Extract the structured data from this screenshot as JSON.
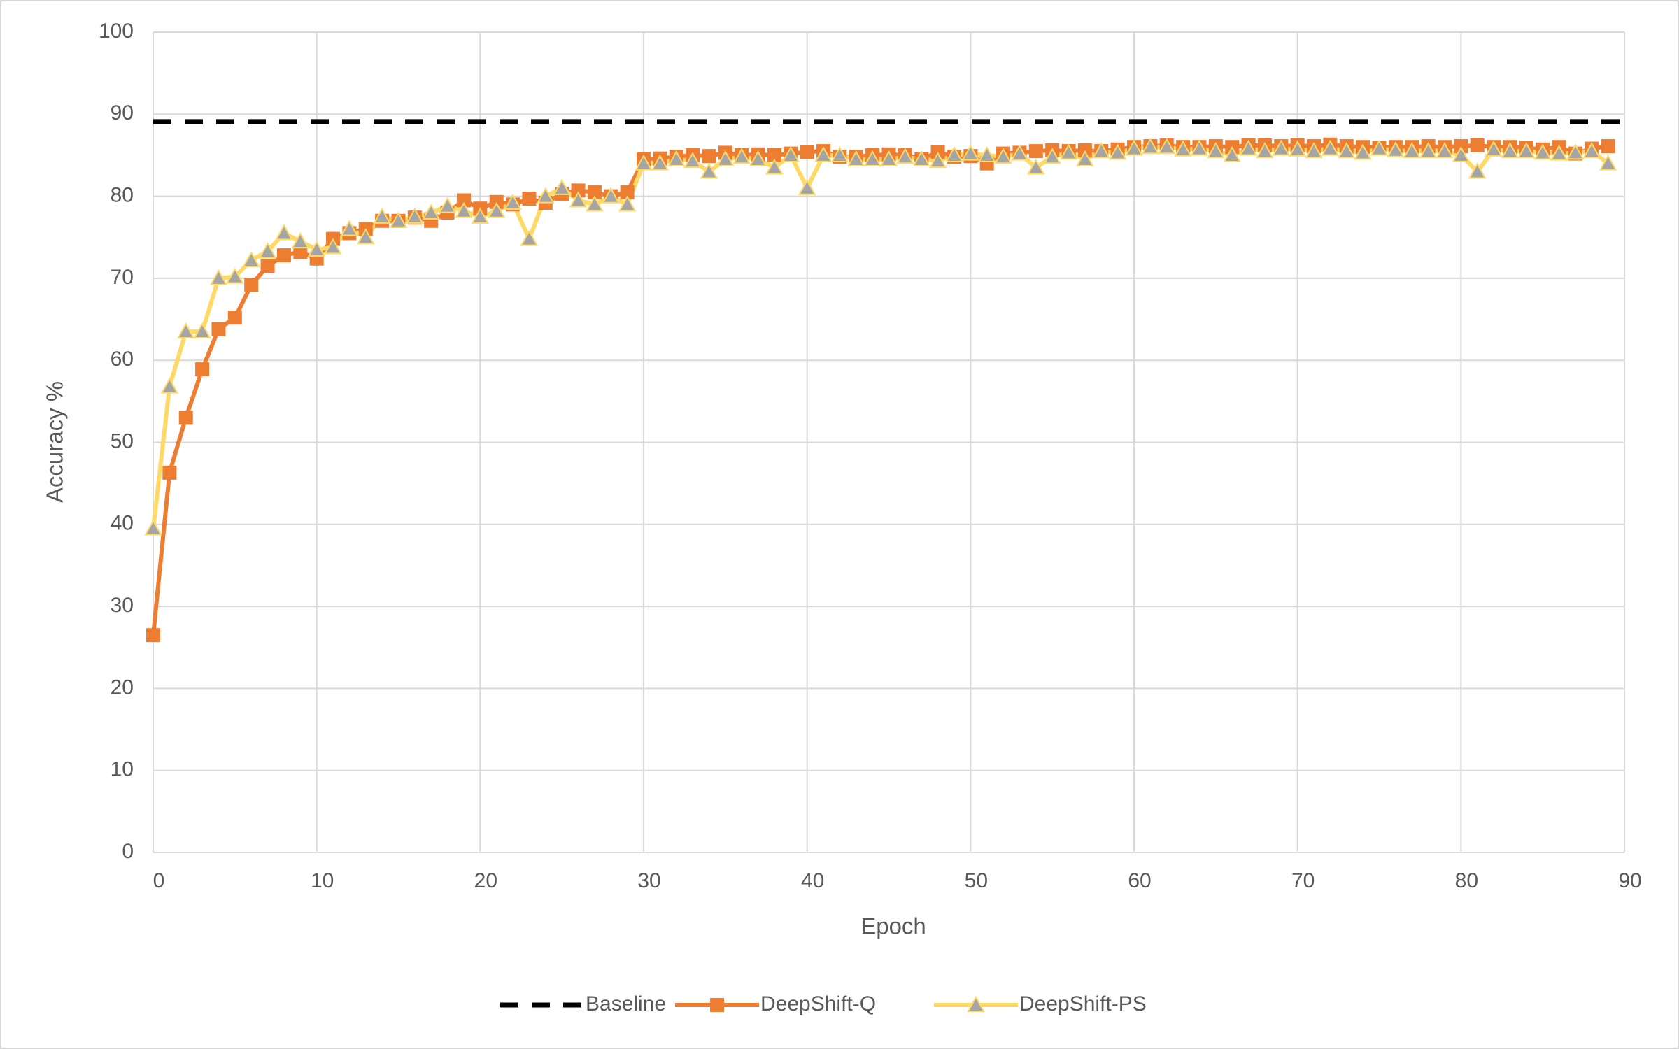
{
  "chart_data": {
    "type": "line",
    "x_label": "Epoch",
    "y_label": "Accuracy %",
    "xlim": [
      0,
      90
    ],
    "xticks": [
      0,
      10,
      20,
      30,
      40,
      50,
      60,
      70,
      80,
      90
    ],
    "ylim": [
      0,
      100
    ],
    "yticks": [
      0,
      10,
      20,
      30,
      40,
      50,
      60,
      70,
      80,
      90,
      100
    ],
    "grid": true,
    "legend": "bottom",
    "baseline": {
      "name": "Baseline",
      "value": 89.1,
      "color": "#000000"
    },
    "x": [
      0,
      1,
      2,
      3,
      4,
      5,
      6,
      7,
      8,
      9,
      10,
      11,
      12,
      13,
      14,
      15,
      16,
      17,
      18,
      19,
      20,
      21,
      22,
      23,
      24,
      25,
      26,
      27,
      28,
      29,
      30,
      31,
      32,
      33,
      34,
      35,
      36,
      37,
      38,
      39,
      40,
      41,
      42,
      43,
      44,
      45,
      46,
      47,
      48,
      49,
      50,
      51,
      52,
      53,
      54,
      55,
      56,
      57,
      58,
      59,
      60,
      61,
      62,
      63,
      64,
      65,
      66,
      67,
      68,
      69,
      70,
      71,
      72,
      73,
      74,
      75,
      76,
      77,
      78,
      79,
      80,
      81,
      82,
      83,
      84,
      85,
      86,
      87,
      88,
      89
    ],
    "series": [
      {
        "name": "DeepShift-Q",
        "color": "#ed7d31",
        "marker": "square",
        "values": [
          26.5,
          46.3,
          53,
          58.9,
          63.8,
          65.2,
          69.2,
          71.5,
          72.8,
          73.2,
          72.4,
          74.8,
          75.5,
          76,
          77,
          77,
          77.4,
          77,
          78,
          79.5,
          78.5,
          79.3,
          79,
          79.7,
          79.2,
          80.3,
          80.7,
          80.5,
          80,
          80.5,
          84.5,
          84.6,
          84.8,
          85,
          84.9,
          85.3,
          85,
          85.1,
          85,
          85.2,
          85.4,
          85.5,
          84.8,
          84.8,
          85,
          85.1,
          85,
          84.5,
          85.4,
          84.8,
          84.9,
          84,
          85.2,
          85.3,
          85.5,
          85.6,
          85.5,
          85.6,
          85.5,
          85.7,
          86,
          86.1,
          86.2,
          86,
          86,
          86.1,
          86,
          86.2,
          86.2,
          86.1,
          86.2,
          86.1,
          86.3,
          86.1,
          86,
          85.9,
          86,
          86,
          86.1,
          86,
          86.1,
          86.2,
          86,
          86,
          85.9,
          85.7,
          86,
          85.2,
          85.8,
          86.1
        ]
      },
      {
        "name": "DeepShift-PS",
        "color": "#ffd966",
        "marker": "triangle",
        "values": [
          39.5,
          56.8,
          63.5,
          63.5,
          70,
          70.2,
          72.2,
          73.3,
          75.5,
          74.5,
          73.5,
          73.8,
          76,
          75,
          77.5,
          77,
          77.5,
          78,
          78.8,
          78.2,
          77.5,
          78.2,
          79.2,
          74.8,
          80,
          81,
          79.5,
          79,
          80,
          79,
          84,
          84,
          84.5,
          84.3,
          83,
          84.5,
          84.8,
          84.5,
          83.5,
          85,
          81,
          85,
          85,
          84.5,
          84.5,
          84.5,
          84.8,
          84.5,
          84.3,
          85,
          85.2,
          85,
          84.8,
          85.2,
          83.5,
          84.8,
          85.3,
          84.5,
          85.5,
          85.3,
          85.8,
          86,
          86,
          85.7,
          85.8,
          85.5,
          85,
          85.8,
          85.5,
          85.8,
          85.7,
          85.5,
          85.8,
          85.5,
          85.3,
          85.8,
          85.6,
          85.5,
          85.5,
          85.5,
          85,
          83,
          85.7,
          85.5,
          85.5,
          85.3,
          85.2,
          85.3,
          85.5,
          84
        ]
      }
    ]
  }
}
